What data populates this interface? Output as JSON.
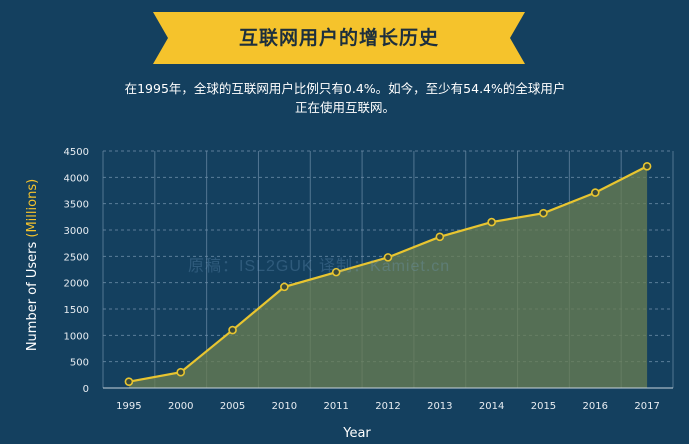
{
  "banner": {
    "title": "互联网用户的增长历史"
  },
  "subtitle": {
    "line1": "在1995年，全球的互联网用户比例只有0.4%。如今，至少有54.4%的全球用户",
    "line2": "正在使用互联网。"
  },
  "watermark": "原稿：ISL2GUK 译制：Kamiet.cn",
  "colors": {
    "background": "#14405f",
    "banner": "#f5c32c",
    "line": "#e8c530",
    "area": "#6b7f52",
    "grid": "#6d8da8"
  },
  "chart_data": {
    "type": "area",
    "categories": [
      "1995",
      "2000",
      "2005",
      "2010",
      "2011",
      "2012",
      "2013",
      "2014",
      "2015",
      "2016",
      "2017"
    ],
    "values": [
      120,
      300,
      1100,
      1920,
      2200,
      2480,
      2870,
      3150,
      3320,
      3710,
      4210
    ],
    "xlabel": "Year",
    "ylabel_main": "Number of Users ",
    "ylabel_unit": "(Millions)",
    "ylim": [
      0,
      4500
    ],
    "yticks": [
      0,
      500,
      1000,
      1500,
      2000,
      2500,
      3000,
      3500,
      4000,
      4500
    ],
    "grid": true
  }
}
